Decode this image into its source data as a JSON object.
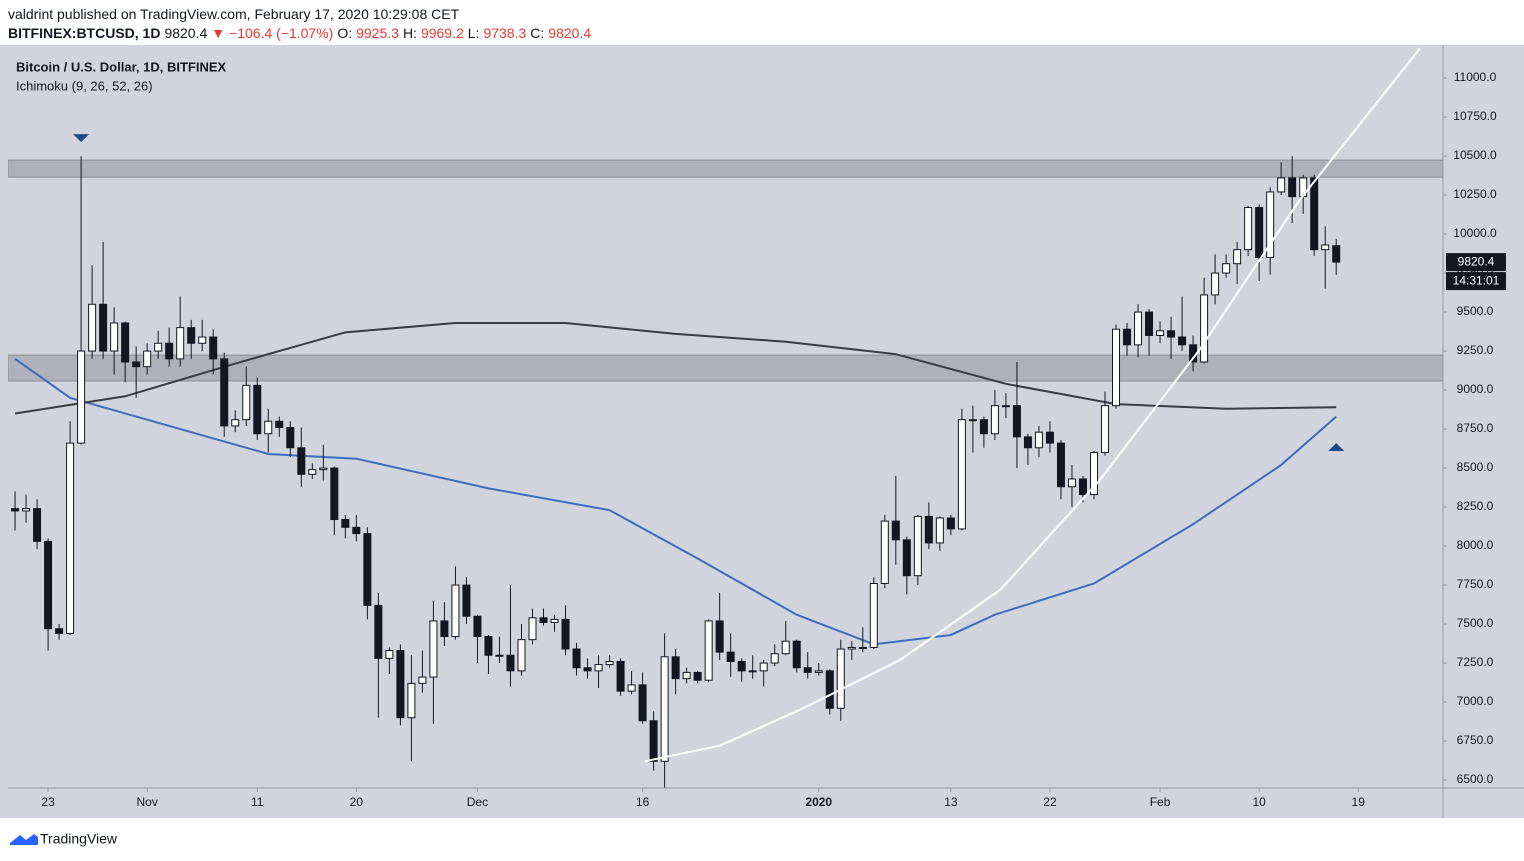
{
  "header": {
    "published": "valdrint published on TradingView.com, February 17, 2020 10:29:08 CET",
    "symbol": "BITFINEX:BTCUSD, 1D",
    "change": "−106.4 (−1.07%)",
    "open_label": "O:",
    "high_label": "H:",
    "low_label": "L:",
    "close_label": "C:",
    "countdown": "14:31:01",
    "brand": "TradingView"
  },
  "chart_data": {
    "type": "candlestick",
    "title": "Bitcoin / U.S. Dollar, 1D, BITFINEX",
    "subtitle": "Ichimoku (9, 26, 52, 26)",
    "up_color": "#ffffff",
    "down_color": "#131722",
    "open": [
      8240,
      8225,
      8240,
      8030,
      7470,
      7440,
      8660,
      9250,
      9550,
      9250,
      9430,
      9180,
      9150,
      9250,
      9300,
      9200,
      9400,
      9300,
      9340,
      9200,
      8770,
      8810,
      9030,
      8720,
      8800,
      8760,
      8630,
      8460,
      8490,
      8500,
      8170,
      8120,
      8080,
      7620,
      7280,
      7330,
      6900,
      7120,
      7160,
      7520,
      7420,
      7750,
      7550,
      7420,
      7300,
      7300,
      7200,
      7400,
      7540,
      7510,
      7530,
      7340,
      7220,
      7200,
      7240,
      7260,
      7070,
      7110,
      6880,
      6620,
      7290,
      7150,
      7190,
      7140,
      7520,
      7320,
      7260,
      7200,
      7200,
      7250,
      7310,
      7390,
      7220,
      7190,
      7200,
      6960,
      7340,
      7350,
      7350,
      7760,
      8160,
      8040,
      7810,
      8190,
      8020,
      8180,
      8110,
      8810,
      8810,
      8720,
      8900,
      8900,
      8700,
      8630,
      8730,
      8660,
      8380,
      8430,
      8330,
      8600,
      8900,
      9390,
      9290,
      9500,
      9350,
      9380,
      9340,
      9290,
      9180,
      9610,
      9750,
      9810,
      9900,
      10170,
      9850,
      10270,
      10360,
      10240,
      10360,
      9900,
      9925.3
    ],
    "high": [
      8350,
      8330,
      8300,
      8050,
      7500,
      8800,
      10500,
      9800,
      9950,
      9530,
      9440,
      9280,
      9300,
      9380,
      9400,
      9600,
      9450,
      9450,
      9390,
      9240,
      8870,
      9150,
      9080,
      8880,
      8830,
      8800,
      8760,
      8530,
      8650,
      8510,
      8200,
      8200,
      8120,
      7700,
      7350,
      7370,
      7300,
      7330,
      7650,
      7640,
      7870,
      7800,
      7560,
      7430,
      7420,
      7750,
      7500,
      7600,
      7600,
      7560,
      7620,
      7380,
      7280,
      7300,
      7300,
      7280,
      7200,
      7190,
      6940,
      7440,
      7340,
      7220,
      7200,
      7530,
      7700,
      7440,
      7280,
      7300,
      7270,
      7370,
      7520,
      7400,
      7320,
      7250,
      7210,
      7400,
      7390,
      7480,
      7800,
      8200,
      8450,
      8060,
      8200,
      8280,
      8190,
      8200,
      8880,
      8900,
      8830,
      9000,
      8980,
      9180,
      8720,
      8770,
      8800,
      8680,
      8520,
      8450,
      8610,
      8990,
      9420,
      9430,
      9550,
      9520,
      9440,
      9470,
      9600,
      9350,
      9720,
      9870,
      9870,
      9950,
      10180,
      10190,
      10300,
      10460,
      10500,
      10380,
      10380,
      10050,
      9969.2
    ],
    "low": [
      8100,
      8150,
      7980,
      7330,
      7400,
      7430,
      8650,
      9200,
      9200,
      9100,
      9050,
      8950,
      9100,
      9200,
      9150,
      9150,
      9200,
      9250,
      9100,
      8700,
      8730,
      8770,
      8680,
      8600,
      8700,
      8570,
      8380,
      8430,
      8420,
      8070,
      8050,
      8030,
      7530,
      6900,
      7180,
      6850,
      6620,
      7060,
      6860,
      7360,
      7400,
      7500,
      7250,
      7180,
      7250,
      7100,
      7170,
      7370,
      7490,
      7450,
      7300,
      7170,
      7150,
      7090,
      7220,
      7040,
      7050,
      6860,
      6560,
      6450,
      7050,
      7120,
      7120,
      7130,
      7270,
      7160,
      7130,
      7150,
      7100,
      7230,
      7300,
      7190,
      7150,
      7170,
      6920,
      6880,
      7270,
      7320,
      7340,
      7730,
      7880,
      7690,
      7750,
      7980,
      7970,
      8070,
      8100,
      8600,
      8630,
      8680,
      8820,
      8500,
      8520,
      8570,
      8600,
      8300,
      8250,
      8280,
      8300,
      8580,
      8880,
      9220,
      9210,
      9220,
      9300,
      9200,
      9250,
      9120,
      9170,
      9550,
      9720,
      9680,
      9860,
      9700,
      9740,
      10250,
      10070,
      10130,
      9860,
      9650,
      9738.3
    ],
    "close": [
      8225,
      8240,
      8030,
      7470,
      7440,
      8660,
      9250,
      9550,
      9250,
      9430,
      9180,
      9150,
      9250,
      9300,
      9200,
      9400,
      9300,
      9340,
      9200,
      8770,
      8810,
      9030,
      8720,
      8800,
      8760,
      8630,
      8460,
      8490,
      8500,
      8170,
      8120,
      8080,
      7620,
      7280,
      7330,
      6900,
      7120,
      7160,
      7520,
      7420,
      7750,
      7550,
      7420,
      7300,
      7300,
      7200,
      7400,
      7540,
      7510,
      7530,
      7340,
      7220,
      7200,
      7240,
      7260,
      7070,
      7110,
      6880,
      6620,
      7290,
      7150,
      7190,
      7140,
      7520,
      7320,
      7260,
      7200,
      7200,
      7250,
      7310,
      7390,
      7220,
      7190,
      7200,
      6960,
      7340,
      7350,
      7350,
      7760,
      8160,
      8040,
      7810,
      8190,
      8020,
      8180,
      8110,
      8810,
      8810,
      8720,
      8900,
      8900,
      8700,
      8630,
      8730,
      8660,
      8380,
      8430,
      8330,
      8600,
      8900,
      9390,
      9290,
      9500,
      9350,
      9380,
      9340,
      9290,
      9180,
      9610,
      9750,
      9810,
      9900,
      10170,
      9850,
      10270,
      10360,
      10240,
      10360,
      9900,
      9930,
      9820.4
    ],
    "lines": [
      {
        "color": "#3c6cc0",
        "x": [
          0,
          5,
          12,
          23,
          31,
          43,
          54,
          62,
          71,
          78,
          85,
          89,
          98,
          107,
          115,
          120
        ],
        "values": [
          9200,
          8950,
          8810,
          8590,
          8560,
          8370,
          8230,
          7920,
          7560,
          7370,
          7430,
          7560,
          7760,
          8140,
          8520,
          8830
        ]
      },
      {
        "color": "#3a3c44",
        "x": [
          0,
          10,
          20,
          30,
          40,
          50,
          60,
          70,
          80,
          90,
          100,
          110,
          120
        ],
        "values": [
          8850,
          8960,
          9170,
          9370,
          9430,
          9430,
          9360,
          9310,
          9230,
          9040,
          8910,
          8880,
          8890
        ]
      },
      {
        "color": "#ffffff",
        "x": [
          57.2,
          64,
          71.3,
          80.4,
          89.5,
          98.5,
          107.6,
          116.7,
          127.6
        ],
        "values": [
          6620,
          6720,
          6950,
          7270,
          7720,
          8420,
          9260,
          10220,
          11190
        ]
      }
    ],
    "zones": [
      {
        "ymin": 10365,
        "ymax": 10474
      },
      {
        "ymin": 9058,
        "ymax": 9224
      }
    ],
    "markers": [
      {
        "x": 6,
        "y": 10615,
        "direction": "down",
        "color": "#1e4a8c"
      },
      {
        "x": 120,
        "y": 8635,
        "direction": "up",
        "color": "#1e4a8c"
      }
    ],
    "xlim": [
      -0.64,
      129.7
    ],
    "ylim": [
      6449,
      11212
    ],
    "xticks": [
      {
        "value": 3,
        "label": "23"
      },
      {
        "value": 12,
        "label": "Nov"
      },
      {
        "value": 22,
        "label": "11"
      },
      {
        "value": 31,
        "label": "20"
      },
      {
        "value": 42,
        "label": "Dec"
      },
      {
        "value": 57,
        "label": "16"
      },
      {
        "value": 73,
        "label": "2020"
      },
      {
        "value": 85,
        "label": "13"
      },
      {
        "value": 94,
        "label": "22"
      },
      {
        "value": 104,
        "label": "Feb"
      },
      {
        "value": 113,
        "label": "10"
      },
      {
        "value": 122,
        "label": "19"
      }
    ],
    "yticks": [
      {
        "value": 6500,
        "label": "6500.0"
      },
      {
        "value": 6750,
        "label": "6750.0"
      },
      {
        "value": 7000,
        "label": "7000.0"
      },
      {
        "value": 7250,
        "label": "7250.0"
      },
      {
        "value": 7500,
        "label": "7500.0"
      },
      {
        "value": 7750,
        "label": "7750.0"
      },
      {
        "value": 8000,
        "label": "8000.0"
      },
      {
        "value": 8250,
        "label": "8250.0"
      },
      {
        "value": 8500,
        "label": "8500.0"
      },
      {
        "value": 8750,
        "label": "8750.0"
      },
      {
        "value": 9000,
        "label": "9000.0"
      },
      {
        "value": 9250,
        "label": "9250.0"
      },
      {
        "value": 9500,
        "label": "9500.0"
      },
      {
        "value": 9750,
        "label": "9750.0"
      },
      {
        "value": 10000,
        "label": "10000.0"
      },
      {
        "value": 10250,
        "label": "10250.0"
      },
      {
        "value": 10500,
        "label": "10500.0"
      },
      {
        "value": 10750,
        "label": "10750.0"
      },
      {
        "value": 11000,
        "label": "11000.0"
      }
    ]
  }
}
